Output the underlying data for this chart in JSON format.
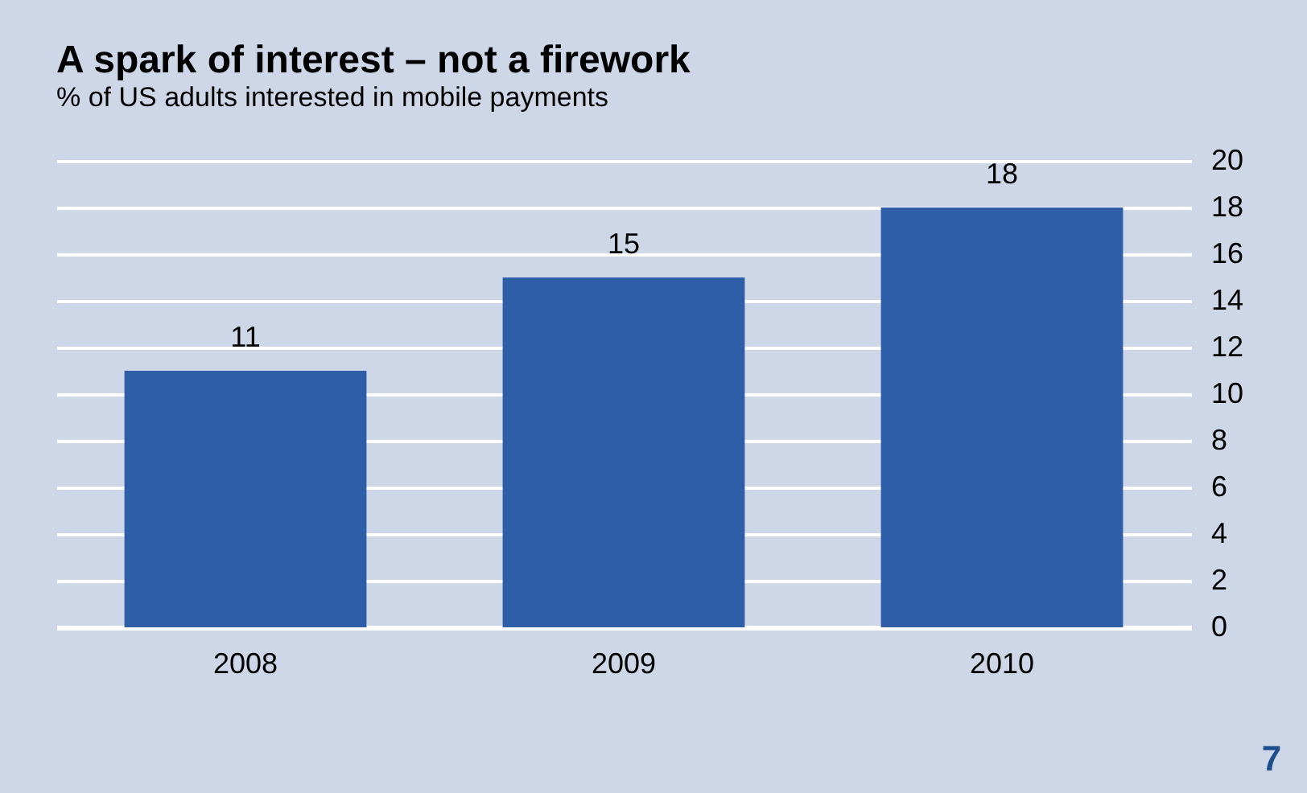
{
  "chart_data": {
    "type": "bar",
    "title": "A spark of interest – not a firework",
    "subtitle": "% of US adults interested in mobile payments",
    "categories": [
      "2008",
      "2009",
      "2010"
    ],
    "values": [
      11,
      15,
      18
    ],
    "color": "#2f5ea9",
    "ylim": [
      0,
      20
    ],
    "yticks": [
      0,
      2,
      4,
      6,
      8,
      10,
      12,
      14,
      16,
      18,
      20
    ],
    "grid": "y",
    "data_labels": true,
    "annotations": [
      "7"
    ]
  }
}
